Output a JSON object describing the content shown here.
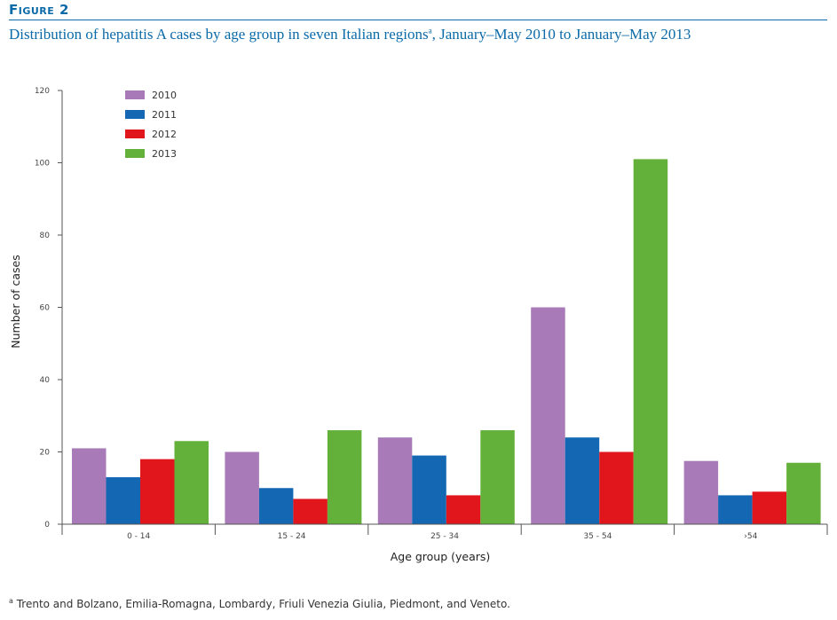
{
  "figure_label": "Figure 2",
  "title_main": "Distribution of hepatitis A cases by age group in seven Italian regions",
  "title_sup": "a",
  "title_tail": ", January–May 2010 to January–May 2013",
  "footnote_sup": "a",
  "footnote_text": " Trento and Bolzano, Emilia-Romagna, Lombardy, Friuli Venezia Giulia, Piedmont, and Veneto.",
  "chart_data": {
    "type": "bar",
    "title": "Distribution of hepatitis A cases by age group in seven Italian regions, January–May 2010 to January–May 2013",
    "xlabel": "Age group (years)",
    "ylabel": "Number of cases",
    "categories": [
      "0 - 14",
      "15 - 24",
      "25 - 34",
      "35 - 54",
      "›54"
    ],
    "ylim": [
      0,
      120
    ],
    "yticks": [
      0,
      20,
      40,
      60,
      80,
      100,
      120
    ],
    "grid": false,
    "legend_position": "top-left",
    "series": [
      {
        "name": "2010",
        "color": "#a87bb8",
        "values": [
          21,
          20,
          24,
          60,
          17.5
        ]
      },
      {
        "name": "2011",
        "color": "#1468b3",
        "values": [
          13,
          10,
          19,
          24,
          8
        ]
      },
      {
        "name": "2012",
        "color": "#e0161c",
        "values": [
          18,
          7,
          8,
          20,
          9
        ]
      },
      {
        "name": "2013",
        "color": "#63b13b",
        "values": [
          23,
          26,
          26,
          101,
          17
        ]
      }
    ]
  }
}
